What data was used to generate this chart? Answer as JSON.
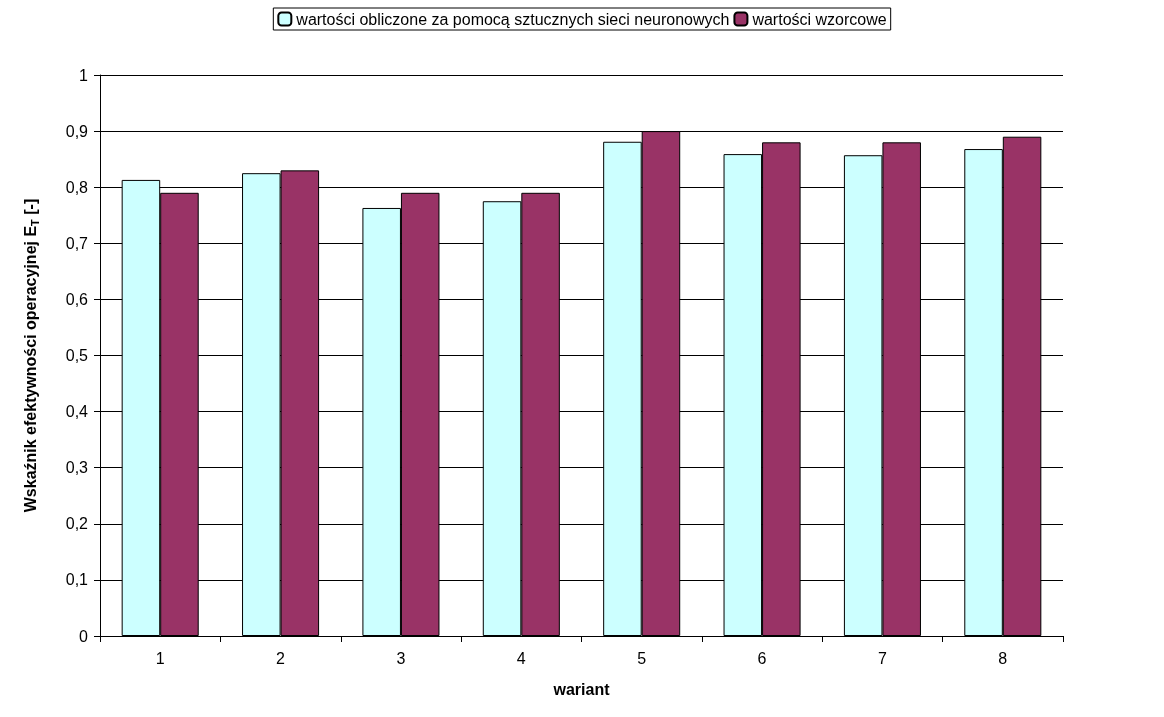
{
  "chart_data": {
    "type": "bar",
    "xlabel": "wariant",
    "ylabel": "Wskaźnik efektywności operacyjnej E$_{T}$ [-]",
    "categories": [
      "1",
      "2",
      "3",
      "4",
      "5",
      "6",
      "7",
      "8"
    ],
    "series": [
      {
        "name": "wartości obliczone za pomocą sztucznych sieci neuronowych",
        "color": "#ccffff",
        "values": [
          0.813,
          0.825,
          0.763,
          0.775,
          0.881,
          0.859,
          0.857,
          0.868
        ]
      },
      {
        "name": "wartości wzorcowe",
        "color": "#993366",
        "values": [
          0.79,
          0.83,
          0.79,
          0.79,
          0.9,
          0.88,
          0.88,
          0.89
        ]
      }
    ],
    "ylim": [
      0,
      1
    ],
    "yticks": [
      0,
      {
        "value": 0.1,
        "label": "0,1"
      },
      {
        "value": 0.2,
        "label": "0,2"
      },
      {
        "value": 0.3,
        "label": "0,3"
      },
      {
        "value": 0.4,
        "label": "0,4"
      },
      {
        "value": 0.5,
        "label": "0,5"
      },
      {
        "value": 0.6,
        "label": "0,6"
      },
      {
        "value": 0.7,
        "label": "0,7"
      },
      {
        "value": 0.8,
        "label": "0,8"
      },
      {
        "value": 0.9,
        "label": "0,9"
      },
      1
    ],
    "grid": "y",
    "legend": "top"
  }
}
